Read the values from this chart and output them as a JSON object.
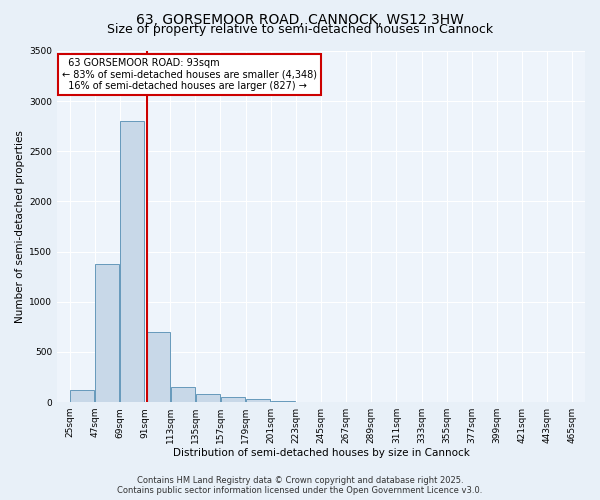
{
  "title_line1": "63, GORSEMOOR ROAD, CANNOCK, WS12 3HW",
  "title_line2": "Size of property relative to semi-detached houses in Cannock",
  "bar_values": [
    120,
    1380,
    2800,
    700,
    150,
    80,
    50,
    30,
    15,
    5,
    2,
    1,
    0,
    0,
    0,
    0,
    0,
    0,
    0,
    0
  ],
  "bin_edges": [
    25,
    47,
    69,
    91,
    113,
    135,
    157,
    179,
    201,
    223,
    245,
    267,
    289,
    311,
    333,
    355,
    377,
    399,
    421,
    443,
    465
  ],
  "bar_color": "#c8d8e8",
  "bar_edge_color": "#6699bb",
  "property_size": 93,
  "red_line_color": "#cc0000",
  "annotation_text": "  63 GORSEMOOR ROAD: 93sqm  \n← 83% of semi-detached houses are smaller (4,348)\n  16% of semi-detached houses are larger (827) →  ",
  "annotation_box_color": "#ffffff",
  "annotation_box_edge": "#cc0000",
  "xlabel": "Distribution of semi-detached houses by size in Cannock",
  "ylabel": "Number of semi-detached properties",
  "ylim": [
    0,
    3500
  ],
  "yticks": [
    0,
    500,
    1000,
    1500,
    2000,
    2500,
    3000,
    3500
  ],
  "footer_line1": "Contains HM Land Registry data © Crown copyright and database right 2025.",
  "footer_line2": "Contains public sector information licensed under the Open Government Licence v3.0.",
  "bg_color": "#e8f0f8",
  "plot_bg_color": "#eef4fb",
  "grid_color": "#ffffff",
  "title_fontsize": 10,
  "subtitle_fontsize": 9,
  "axis_label_fontsize": 7.5,
  "tick_fontsize": 6.5,
  "annotation_fontsize": 7,
  "footer_fontsize": 6
}
